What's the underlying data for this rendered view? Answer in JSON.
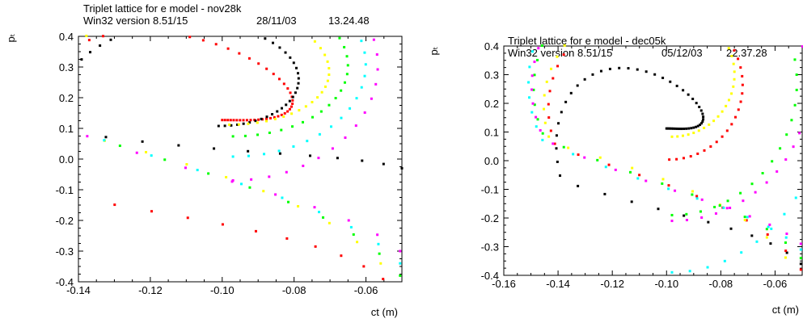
{
  "chart_data": [
    {
      "type": "scatter",
      "title": "Triplet lattice for e model - nov28k",
      "subtitle": "Win32 version 8.51/15",
      "date": "28/11/03",
      "time": "13.24.48",
      "xlabel": "ct (m)",
      "ylabel": "pₜ",
      "xlim": [
        -0.14,
        -0.05
      ],
      "ylim": [
        -0.4,
        0.4
      ],
      "xticks": [
        "-0.14",
        "-0.12",
        "-0.10",
        "-0.08",
        "-0.06"
      ],
      "yticks": [
        "-0.4",
        "-0.3",
        "-0.2",
        "-0.1",
        "0.0",
        "0.1",
        "0.2",
        "0.3",
        "0.4"
      ],
      "grid": false,
      "series": [
        {
          "color": "#ff0000",
          "curve": {
            "xs": -0.051,
            "ys": 0.04,
            "xe": -0.0508,
            "ye": -0.44,
            "cx": -0.1,
            "cy": 0.145,
            "ri": 0.0085,
            "ai": 0.105,
            "ro": 0.065,
            "ao": 0.5,
            "ps": 0.34,
            "pe": 0.29,
            "n": 70
          }
        },
        {
          "color": "#000000",
          "curve": {
            "xs": -0.051,
            "ys": -0.03,
            "xe": -0.05,
            "ye": -0.03,
            "cx": -0.101,
            "cy": 0.22,
            "ri": 0.017,
            "ai": 0.33,
            "ro": 0.048,
            "ao": 0.34,
            "ps": 0.34,
            "pe": 0.22,
            "n": 62
          }
        },
        {
          "color": "#ffff00",
          "curve": {
            "xs": -0.051,
            "ys": 0.03,
            "xe": -0.0505,
            "ye": -0.42,
            "cx": -0.098,
            "cy": 0.25,
            "ri": 0.023,
            "ai": 0.3,
            "ro": 0.052,
            "ao": 0.38,
            "ps": 0.35,
            "pe": 0.15,
            "n": 56
          }
        },
        {
          "color": "#00ff00",
          "curve": {
            "xs": -0.052,
            "ys": 0.05,
            "xe": -0.0505,
            "ye": -0.38,
            "cx": -0.097,
            "cy": 0.27,
            "ri": 0.028,
            "ai": 0.35,
            "ro": 0.053,
            "ao": 0.4,
            "ps": 0.34,
            "pe": 0.1,
            "n": 52
          }
        },
        {
          "color": "#00ffff",
          "curve": {
            "xs": -0.053,
            "ys": 0.05,
            "xe": -0.0505,
            "ye": -0.34,
            "cx": -0.097,
            "cy": 0.28,
            "ri": 0.034,
            "ai": 0.4,
            "ro": 0.053,
            "ao": 0.4,
            "ps": 0.34,
            "pe": 0.06,
            "n": 50
          }
        },
        {
          "color": "#ff00ff",
          "curve": {
            "xs": -0.054,
            "ys": 0.06,
            "xe": -0.0505,
            "ye": -0.3,
            "cx": -0.097,
            "cy": 0.28,
            "ri": 0.038,
            "ai": 0.46,
            "ro": 0.053,
            "ao": 0.4,
            "ps": 0.34,
            "pe": 0.03,
            "n": 48
          }
        }
      ]
    },
    {
      "type": "scatter",
      "title": "Triplet lattice for e model - dec05k",
      "subtitle": "Win32 version 8.51/15",
      "date": "05/12/03",
      "time": "22.37.28",
      "xlabel": "ct (m)",
      "ylabel": "pₜ",
      "xlim": [
        -0.16,
        -0.05
      ],
      "ylim": [
        -0.4,
        0.4
      ],
      "xticks": [
        "-0.16",
        "-0.14",
        "-0.12",
        "-0.10",
        "-0.08",
        "-0.06"
      ],
      "yticks": [
        "-0.4",
        "-0.3",
        "-0.2",
        "-0.1",
        "0.0",
        "0.1",
        "0.2",
        "0.3",
        "0.4"
      ],
      "grid": false,
      "series": [
        {
          "color": "#000000",
          "curve": {
            "xs": -0.052,
            "ys": 0.05,
            "xe": -0.0505,
            "ye": -0.36,
            "cx": -0.1,
            "cy": 0.12,
            "ri": 0.0055,
            "ai": 0.07,
            "ro": 0.046,
            "ao": 0.56,
            "ps": 0.32,
            "pe": 0.13,
            "n": 60
          }
        },
        {
          "color": "#ff0000",
          "curve": {
            "xs": -0.052,
            "ys": 0.05,
            "xe": -0.0505,
            "ye": -0.38,
            "cx": -0.099,
            "cy": 0.22,
            "ri": 0.023,
            "ai": 0.47,
            "ro": 0.048,
            "ao": 0.44,
            "ps": 0.34,
            "pe": 0.13,
            "n": 55
          }
        },
        {
          "color": "#ffff00",
          "curve": {
            "xs": -0.053,
            "ys": 0.05,
            "xe": -0.0505,
            "ye": -0.42,
            "cx": -0.098,
            "cy": 0.24,
            "ri": 0.017,
            "ai": 0.46,
            "ro": 0.052,
            "ao": 0.42,
            "ps": 0.35,
            "pe": 0.2,
            "n": 54
          }
        },
        {
          "color": "#00ff00",
          "curve": {
            "xs": -0.053,
            "ys": 0.05,
            "xe": -0.0505,
            "ye": -0.34,
            "cx": -0.098,
            "cy": 0.26,
            "ri": 0.045,
            "ai": 0.5,
            "ro": 0.052,
            "ao": 0.42,
            "ps": 0.34,
            "pe": 0.05,
            "n": 54
          }
        },
        {
          "color": "#00ffff",
          "curve": {
            "xs": -0.054,
            "ys": 0.05,
            "xe": -0.0505,
            "ye": -0.31,
            "cx": -0.098,
            "cy": 0.26,
            "ri": 0.058,
            "ai": 0.56,
            "ro": 0.052,
            "ao": 0.42,
            "ps": 0.34,
            "pe": 0.0,
            "n": 56
          }
        },
        {
          "color": "#ff00ff",
          "curve": {
            "xs": -0.055,
            "ys": 0.05,
            "xe": -0.0505,
            "ye": -0.29,
            "cx": -0.098,
            "cy": 0.26,
            "ri": 0.05,
            "ai": 0.47,
            "ro": 0.052,
            "ao": 0.42,
            "ps": 0.34,
            "pe": -0.02,
            "n": 58
          }
        }
      ]
    }
  ]
}
